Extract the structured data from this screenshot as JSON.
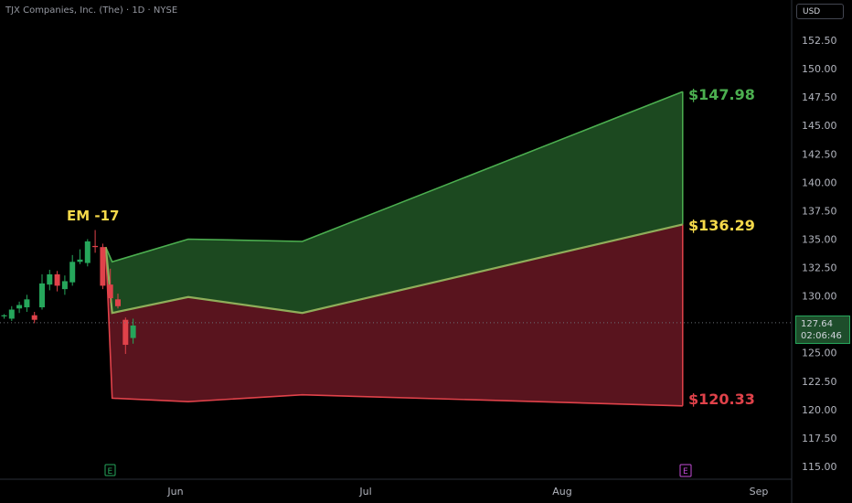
{
  "header": {
    "title": "TJX Companies, Inc. (The) · 1D · NYSE"
  },
  "currency_button": {
    "label": "USD"
  },
  "price_tag": {
    "price": "127.64",
    "countdown": "02:06:46"
  },
  "colors": {
    "background": "#000000",
    "up": "#26a65b",
    "down": "#e0424a",
    "upper_band_fill": "#1e4d22",
    "lower_band_fill": "#5e1520",
    "upper_line": "#4caf50",
    "lower_line": "#e0424a",
    "mid_line": "#8fae5a",
    "annotation_em": "#f5d94a"
  },
  "chart_data": {
    "type": "area",
    "x_tick_labels": [
      "Jun",
      "Jul",
      "Aug",
      "Sep"
    ],
    "y_ticks": [
      "152.50",
      "150.00",
      "147.50",
      "145.00",
      "142.50",
      "140.00",
      "137.50",
      "135.00",
      "132.50",
      "130.00",
      "127.50",
      "125.00",
      "122.50",
      "120.00",
      "117.50",
      "115.00"
    ],
    "ylim": [
      114.0,
      154.0
    ],
    "grid": false,
    "last_price": 127.64,
    "annotations": {
      "em_label": "EM -17",
      "upper_target": "$147.98",
      "mid_target": "$136.29",
      "lower_target": "$120.33"
    },
    "earnings_markers": [
      "E",
      "E"
    ],
    "expected_move_bands": {
      "dates": [
        "2024-05-21",
        "2024-05-22",
        "2024-06-03",
        "2024-06-21",
        "2024-08-20"
      ],
      "upper": [
        134.3,
        133.0,
        135.0,
        134.8,
        147.98
      ],
      "mid": [
        134.3,
        128.5,
        129.9,
        128.5,
        136.29
      ],
      "lower": [
        134.3,
        121.0,
        120.7,
        121.3,
        120.33
      ]
    },
    "candles": [
      {
        "o": 128.2,
        "h": 128.4,
        "l": 128.0,
        "c": 128.3
      },
      {
        "o": 128.0,
        "h": 129.1,
        "l": 127.8,
        "c": 128.8
      },
      {
        "o": 128.9,
        "h": 129.5,
        "l": 128.5,
        "c": 129.2
      },
      {
        "o": 129.0,
        "h": 130.1,
        "l": 128.6,
        "c": 129.7
      },
      {
        "o": 128.3,
        "h": 128.6,
        "l": 127.6,
        "c": 127.9
      },
      {
        "o": 129.0,
        "h": 131.9,
        "l": 128.8,
        "c": 131.1
      },
      {
        "o": 131.0,
        "h": 132.3,
        "l": 130.5,
        "c": 131.9
      },
      {
        "o": 131.9,
        "h": 132.2,
        "l": 130.4,
        "c": 130.9
      },
      {
        "o": 130.6,
        "h": 131.8,
        "l": 130.1,
        "c": 131.3
      },
      {
        "o": 131.2,
        "h": 133.6,
        "l": 130.9,
        "c": 133.0
      },
      {
        "o": 133.0,
        "h": 134.1,
        "l": 132.8,
        "c": 133.2
      },
      {
        "o": 132.9,
        "h": 135.0,
        "l": 132.6,
        "c": 134.8
      },
      {
        "o": 134.4,
        "h": 135.8,
        "l": 133.8,
        "c": 134.3
      },
      {
        "o": 134.3,
        "h": 134.6,
        "l": 130.6,
        "c": 130.9
      },
      {
        "o": 131.0,
        "h": 132.4,
        "l": 129.4,
        "c": 129.8
      },
      {
        "o": 129.7,
        "h": 130.2,
        "l": 128.9,
        "c": 129.1
      },
      {
        "o": 127.9,
        "h": 128.1,
        "l": 124.9,
        "c": 125.7
      },
      {
        "o": 126.3,
        "h": 128.0,
        "l": 125.8,
        "c": 127.4
      }
    ]
  }
}
